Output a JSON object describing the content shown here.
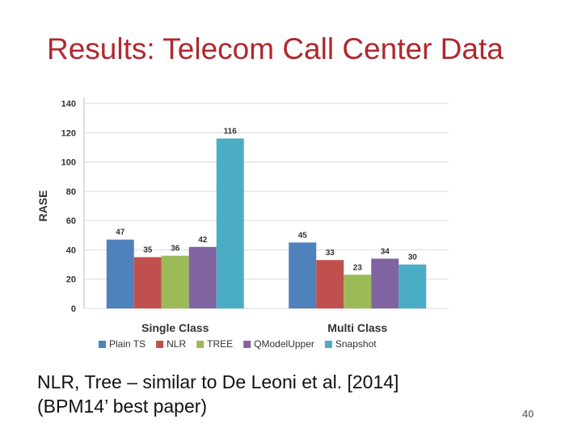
{
  "slide": {
    "title": "Results: Telecom Call Center Data",
    "caption_line1": "NLR, Tree – similar to De Leoni et al. [2014]",
    "caption_line2": "(BPM14’ best paper)",
    "page_number": "40"
  },
  "chart_data": {
    "type": "bar",
    "title": "",
    "xlabel": "",
    "ylabel": "RASE",
    "ylim": [
      0,
      140
    ],
    "yticks": [
      0,
      20,
      40,
      60,
      80,
      100,
      120,
      140
    ],
    "grid": true,
    "legend_position": "bottom",
    "categories": [
      "Single Class",
      "Multi Class"
    ],
    "series": [
      {
        "name": "Plain TS",
        "color": "#4f81bd",
        "values": [
          47,
          45
        ]
      },
      {
        "name": "NLR",
        "color": "#c0504d",
        "values": [
          35,
          33
        ]
      },
      {
        "name": "TREE",
        "color": "#9bbb59",
        "values": [
          36,
          23
        ]
      },
      {
        "name": "QModelUpper",
        "color": "#8064a2",
        "values": [
          42,
          34
        ]
      },
      {
        "name": "Snapshot",
        "color": "#4bacc6",
        "values": [
          116,
          30
        ]
      }
    ]
  }
}
